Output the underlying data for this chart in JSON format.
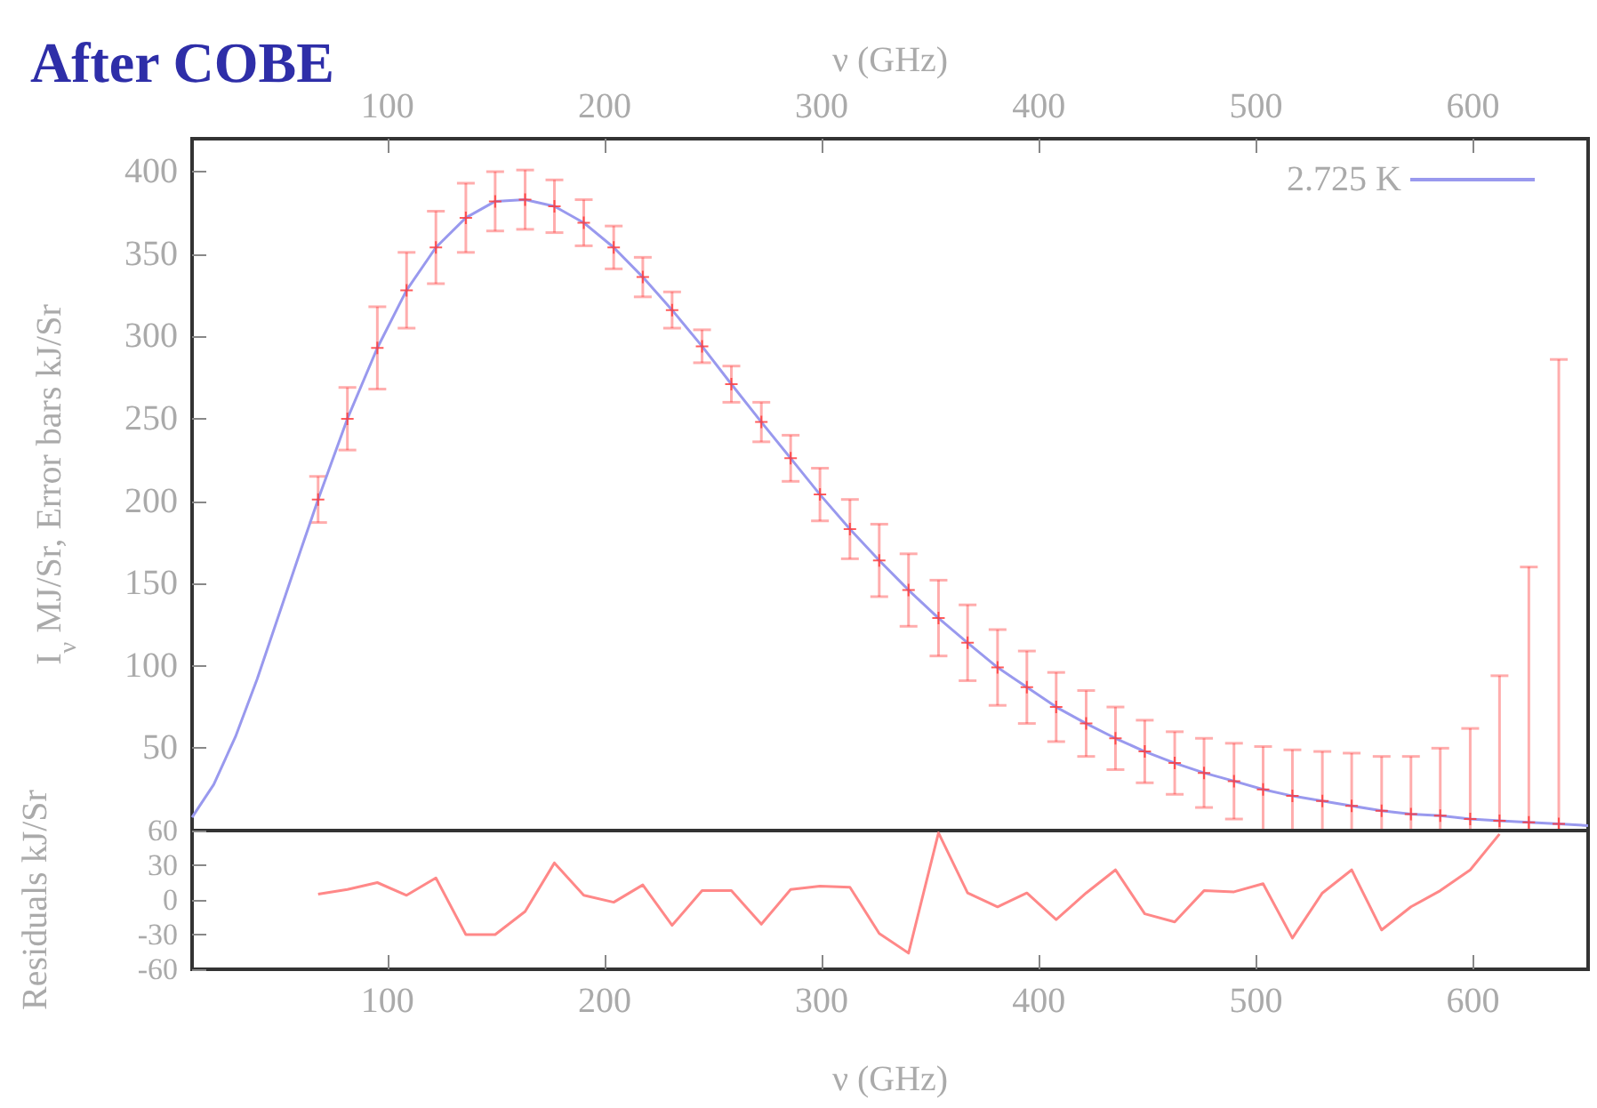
{
  "chart_data": [
    {
      "type": "scatter",
      "title": "After COBE",
      "xlabel": "ν (GHz)",
      "ylabel": "I$_{ν}$ MJ/Sr, Error bars kJ/Sr",
      "xlim": [
        10,
        653
      ],
      "xticks": [
        100,
        200,
        300,
        400,
        500,
        600
      ],
      "ylim": [
        0,
        420
      ],
      "yticks": [
        50,
        100,
        150,
        200,
        250,
        300,
        350,
        400
      ],
      "legend": "top right",
      "grid": false,
      "series": [
        {
          "type": "line",
          "name": "2.725 K",
          "color": "#9999ee",
          "marker": "none",
          "x": [
            10,
            20,
            30,
            40,
            50,
            60,
            68.05,
            81.54,
            95.33,
            108.8,
            122.3,
            136.1,
            149.6,
            163.4,
            176.9,
            190.4,
            204.2,
            217.6,
            231.1,
            244.9,
            258.4,
            272.2,
            285.7,
            299.2,
            313.0,
            326.5,
            340.0,
            353.8,
            367.2,
            381.0,
            394.5,
            408.0,
            421.8,
            435.3,
            448.8,
            462.6,
            476.1,
            489.9,
            503.3,
            516.8,
            530.6,
            544.1,
            557.9,
            571.4,
            584.9,
            598.7,
            612.2,
            625.7,
            639.5,
            653
          ],
          "values": [
            8,
            28,
            57,
            92,
            131,
            170,
            201,
            250,
            293,
            328,
            354,
            372,
            382,
            383,
            379,
            369,
            354,
            336,
            316,
            294,
            271,
            248,
            226,
            204,
            183,
            164,
            146,
            129,
            114,
            99,
            87,
            75,
            65,
            56,
            48,
            41,
            35,
            30,
            25,
            21,
            18,
            15,
            12,
            10,
            9,
            7,
            6,
            5,
            4,
            3
          ]
        },
        {
          "color": "#ff3333",
          "marker": "cross",
          "x": [
            68.05,
            81.54,
            95.33,
            108.8,
            122.3,
            136.1,
            149.6,
            163.4,
            176.9,
            190.4,
            204.2,
            217.6,
            231.1,
            244.9,
            258.4,
            272.2,
            285.7,
            299.2,
            313.0,
            326.5,
            340.0,
            353.8,
            367.2,
            381.0,
            394.5,
            408.0,
            421.8,
            435.3,
            448.8,
            462.6,
            476.1,
            489.9,
            503.3,
            516.8,
            530.6,
            544.1,
            557.9,
            571.4,
            584.9,
            598.7,
            612.2,
            625.7,
            639.5
          ],
          "values": [
            201,
            250,
            293,
            328,
            354,
            372,
            382,
            383,
            379,
            369,
            354,
            336,
            316,
            294,
            271,
            248,
            226,
            204,
            183,
            164,
            146,
            129,
            114,
            99,
            87,
            75,
            65,
            56,
            48,
            41,
            35,
            30,
            25,
            21,
            18,
            15,
            12,
            10,
            9,
            7,
            6,
            5,
            4
          ],
          "errors": [
            14,
            19,
            25,
            23,
            22,
            21,
            18,
            18,
            16,
            14,
            13,
            12,
            11,
            10,
            11,
            12,
            14,
            16,
            18,
            22,
            22,
            23,
            23,
            23,
            22,
            21,
            20,
            19,
            19,
            19,
            21,
            23,
            [
              0,
              51
            ],
            [
              0,
              49
            ],
            [
              0,
              48
            ],
            [
              0,
              47
            ],
            [
              0,
              45
            ],
            [
              0,
              45
            ],
            [
              0,
              50
            ],
            [
              0,
              62
            ],
            [
              0,
              94
            ],
            [
              0,
              160
            ],
            [
              0,
              286
            ]
          ]
        }
      ]
    },
    {
      "type": "line",
      "xlabel": "ν (GHz)",
      "ylabel": "Residuals kJ/Sr",
      "xlim": [
        10,
        653
      ],
      "xticks": [
        100,
        200,
        300,
        400,
        500,
        600
      ],
      "ylim": [
        -60,
        60
      ],
      "yticks": [
        -60,
        -30,
        0,
        30,
        60
      ],
      "grid": false,
      "series": [
        {
          "color": "#ff8888",
          "marker": "none",
          "x": [
            68.05,
            81.54,
            95.33,
            108.8,
            122.3,
            136.1,
            149.6,
            163.4,
            176.9,
            190.4,
            204.2,
            217.6,
            231.1,
            244.9,
            258.4,
            272.2,
            285.7,
            299.2,
            313.0,
            326.5,
            340.0,
            353.8,
            367.2,
            381.0,
            394.5,
            408.0,
            421.8,
            435.3,
            448.8,
            462.6,
            476.1,
            489.9,
            503.3,
            516.8,
            530.6,
            544.1,
            557.9,
            571.4,
            584.9,
            598.7,
            612.2
          ],
          "values": [
            5,
            9,
            15,
            4,
            19,
            -30,
            -30,
            -10,
            32,
            4,
            -2,
            13,
            -22,
            8,
            8,
            -21,
            9,
            12,
            11,
            -29,
            -46,
            58,
            6,
            -6,
            6,
            -17,
            6,
            26,
            -12,
            -19,
            8,
            7,
            14,
            -33,
            6,
            26,
            -26,
            -6,
            8,
            26,
            57
          ]
        }
      ]
    }
  ]
}
